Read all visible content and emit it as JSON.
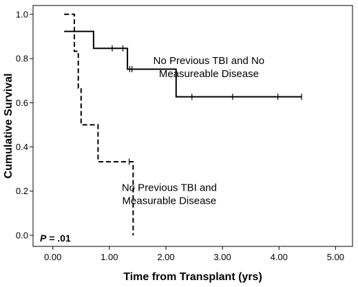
{
  "chart_data": {
    "type": "line",
    "title": "",
    "xlabel": "Time from Transplant (yrs)",
    "ylabel": "Cumulative Survival",
    "xlim": [
      -0.35,
      5.3
    ],
    "ylim": [
      -0.05,
      1.04
    ],
    "xticks": [
      "0.00",
      "1.00",
      "2.00",
      "3.00",
      "4.00",
      "5.00"
    ],
    "xtick_values": [
      0,
      1,
      2,
      3,
      4,
      5
    ],
    "yticks": [
      "0.0",
      "0.2",
      "0.4",
      "0.6",
      "0.8",
      "1.0"
    ],
    "ytick_values": [
      0,
      0.2,
      0.4,
      0.6,
      0.8,
      1.0
    ],
    "grid": false,
    "legend": "none",
    "series": [
      {
        "style": "solid",
        "color": "#000000",
        "steps": [
          [
            0.2,
            0.923
          ],
          [
            0.72,
            0.923
          ],
          [
            0.72,
            0.846
          ],
          [
            1.32,
            0.846
          ],
          [
            1.32,
            0.752
          ],
          [
            2.18,
            0.752
          ],
          [
            2.18,
            0.627
          ],
          [
            4.4,
            0.627
          ]
        ],
        "censored": [
          [
            1.05,
            0.846
          ],
          [
            1.24,
            0.846
          ],
          [
            1.36,
            0.752
          ],
          [
            1.4,
            0.752
          ],
          [
            2.46,
            0.627
          ],
          [
            3.18,
            0.627
          ],
          [
            3.98,
            0.627
          ],
          [
            4.4,
            0.627
          ]
        ]
      },
      {
        "style": "dashed",
        "color": "#000000",
        "steps": [
          [
            0.2,
            1.0
          ],
          [
            0.38,
            1.0
          ],
          [
            0.38,
            0.833
          ],
          [
            0.45,
            0.833
          ],
          [
            0.45,
            0.667
          ],
          [
            0.5,
            0.667
          ],
          [
            0.5,
            0.5
          ],
          [
            0.8,
            0.5
          ],
          [
            0.8,
            0.333
          ],
          [
            1.42,
            0.333
          ],
          [
            1.42,
            0.0
          ]
        ],
        "censored": [
          [
            1.35,
            0.333
          ]
        ]
      }
    ],
    "annotations": [
      {
        "lines": [
          "No Previous TBI and No",
          "Measureable Disease"
        ],
        "x": 2.76,
        "y": 0.776
      },
      {
        "lines": [
          "No Previous TBI and",
          "Measurable Disease"
        ],
        "x": 2.06,
        "y": 0.2
      }
    ],
    "pvalue": {
      "label": "P",
      "text": " = .01"
    }
  }
}
